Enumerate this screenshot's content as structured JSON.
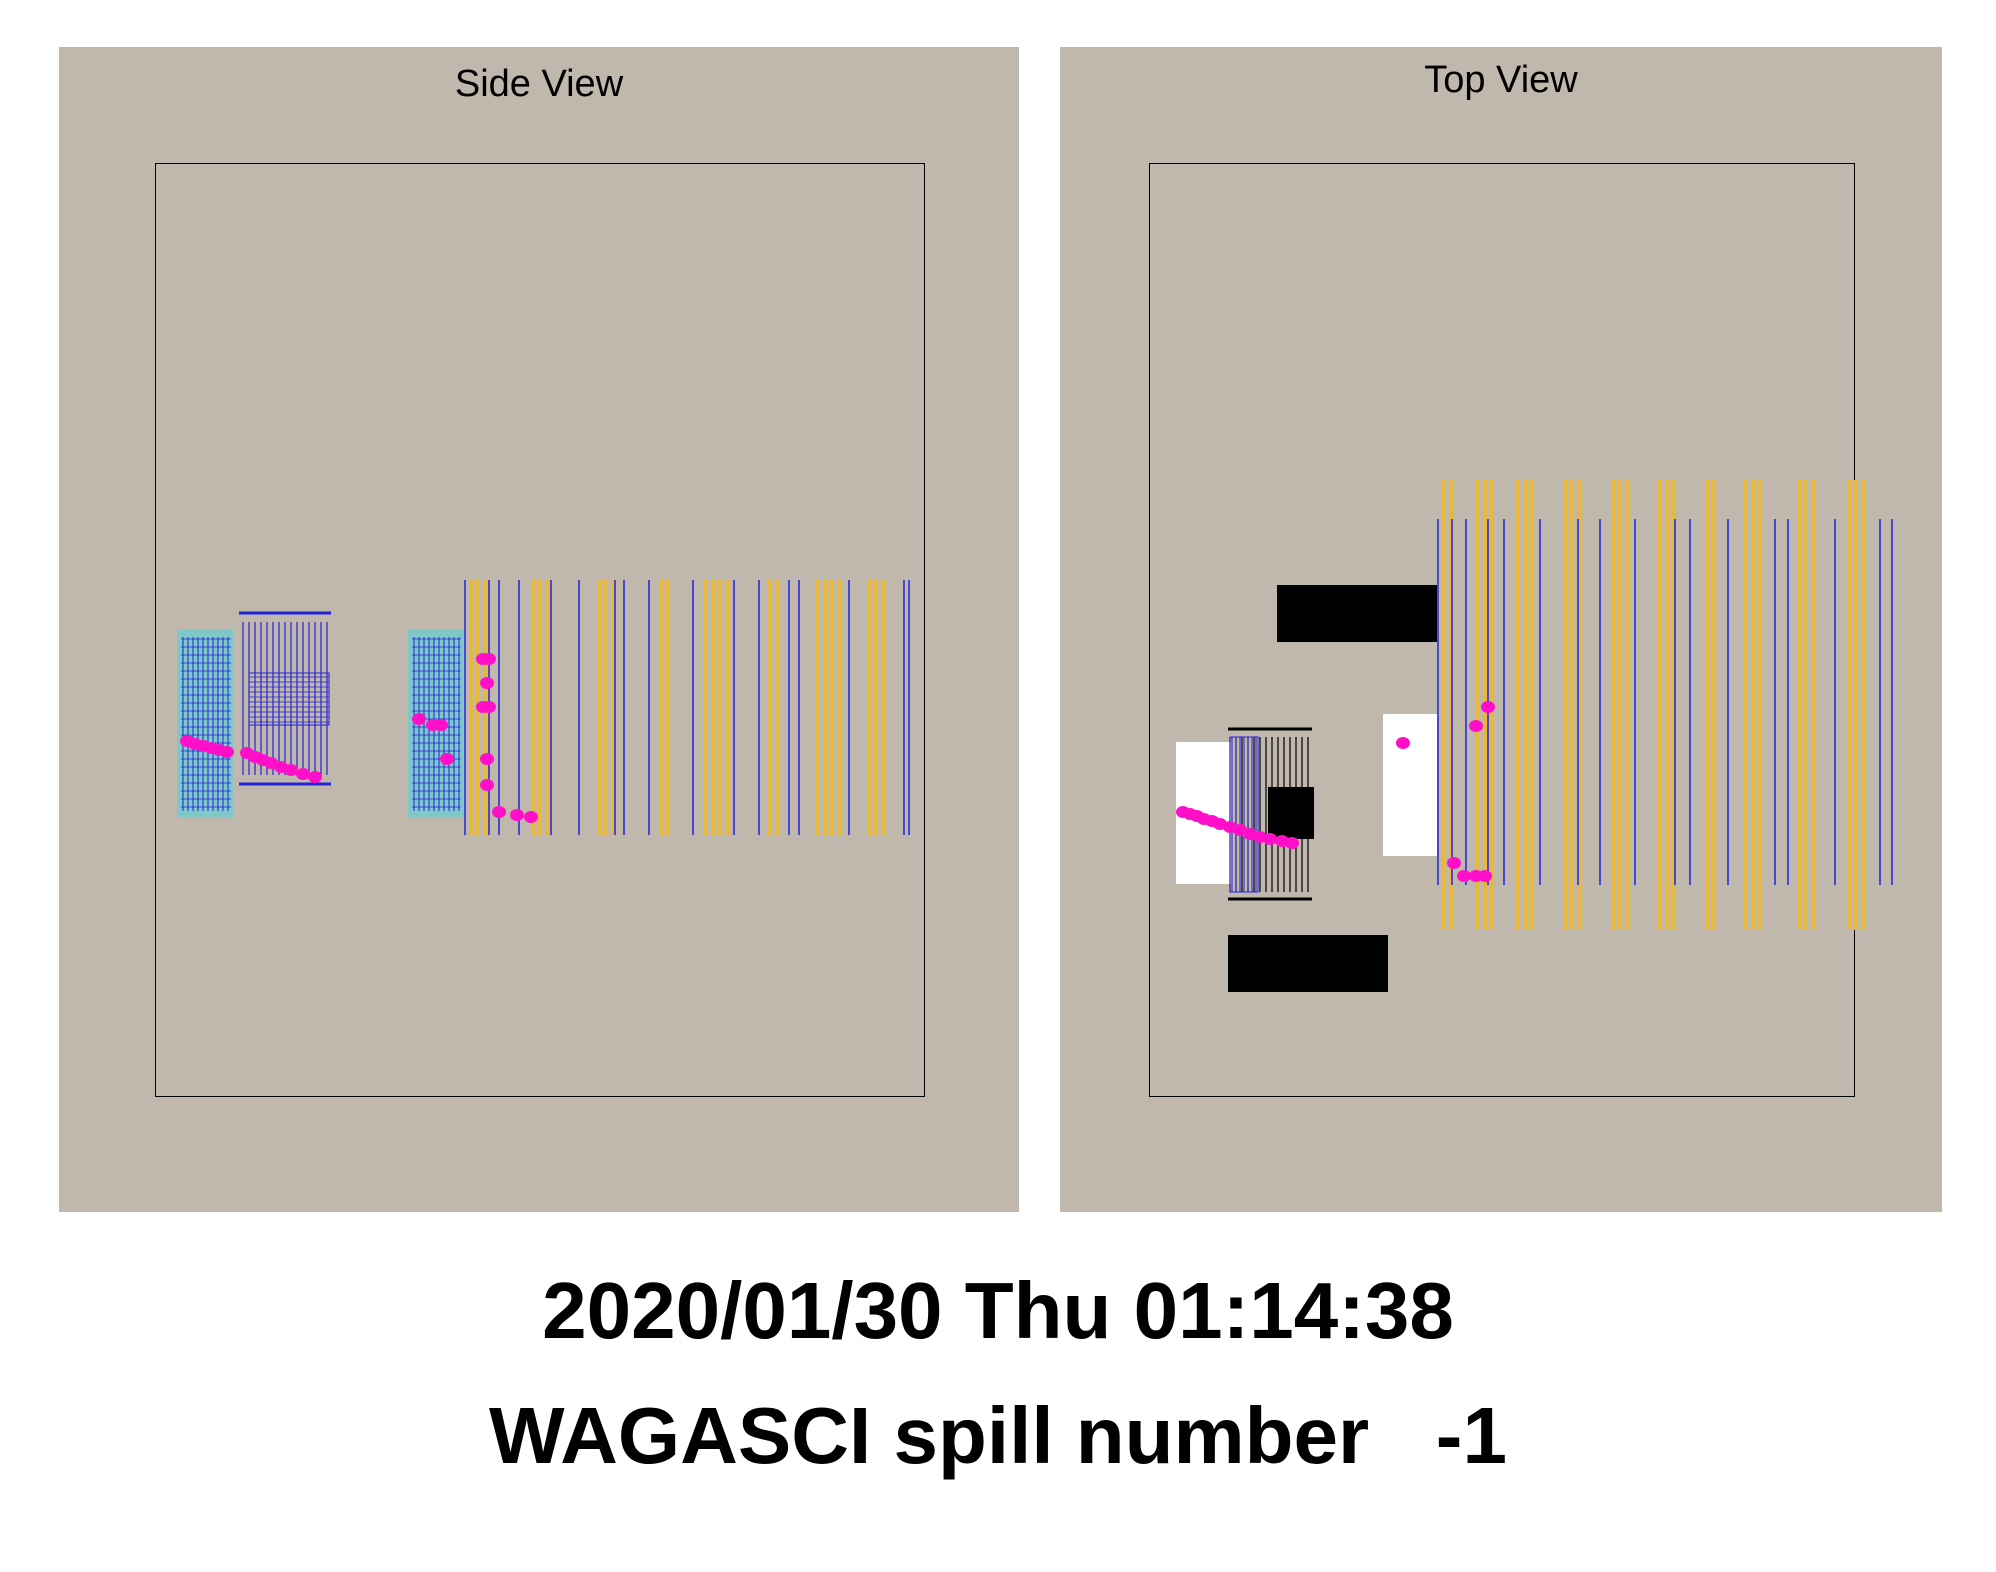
{
  "side_view": {
    "title": "Side View"
  },
  "top_view": {
    "title": "Top View"
  },
  "footer": {
    "datetime": "2020/01/30 Thu 01:14:38",
    "spill": "WAGASCI spill number   -1"
  },
  "colors": {
    "panel_bg": "#c0b7ad",
    "scintillator_blue": "#2323d6",
    "iron_yellow": "#e8b83a",
    "water_module_cyan": "#7fc8c8",
    "hit_magenta": "#ff10c8",
    "shield_black": "#000000",
    "white_box": "#ffffff"
  }
}
